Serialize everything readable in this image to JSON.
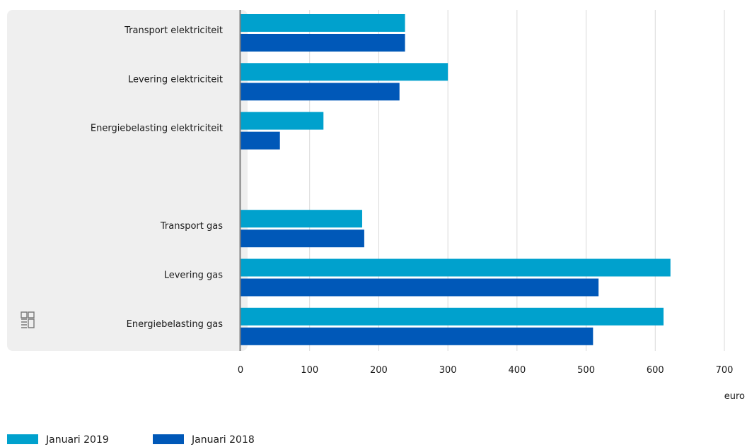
{
  "chart_data": {
    "type": "bar",
    "orientation": "horizontal",
    "categories": [
      "Transport elektriciteit",
      "Levering elektriciteit",
      "Energiebelasting elektriciteit",
      "",
      "Transport gas",
      "Levering gas",
      "Energiebelasting gas"
    ],
    "series": [
      {
        "name": "Januari 2019",
        "color": "#00a1cd",
        "values": [
          238,
          300,
          120,
          null,
          176,
          622,
          612
        ]
      },
      {
        "name": "Januari 2018",
        "color": "#0058b8",
        "values": [
          238,
          230,
          57,
          null,
          179,
          518,
          510
        ]
      }
    ],
    "xlim": [
      0,
      700
    ],
    "xticks": [
      0,
      100,
      200,
      300,
      400,
      500,
      600,
      700
    ],
    "xlabel": "euro",
    "grid": true,
    "legend_position": "bottom-left",
    "logo": "cbs"
  }
}
